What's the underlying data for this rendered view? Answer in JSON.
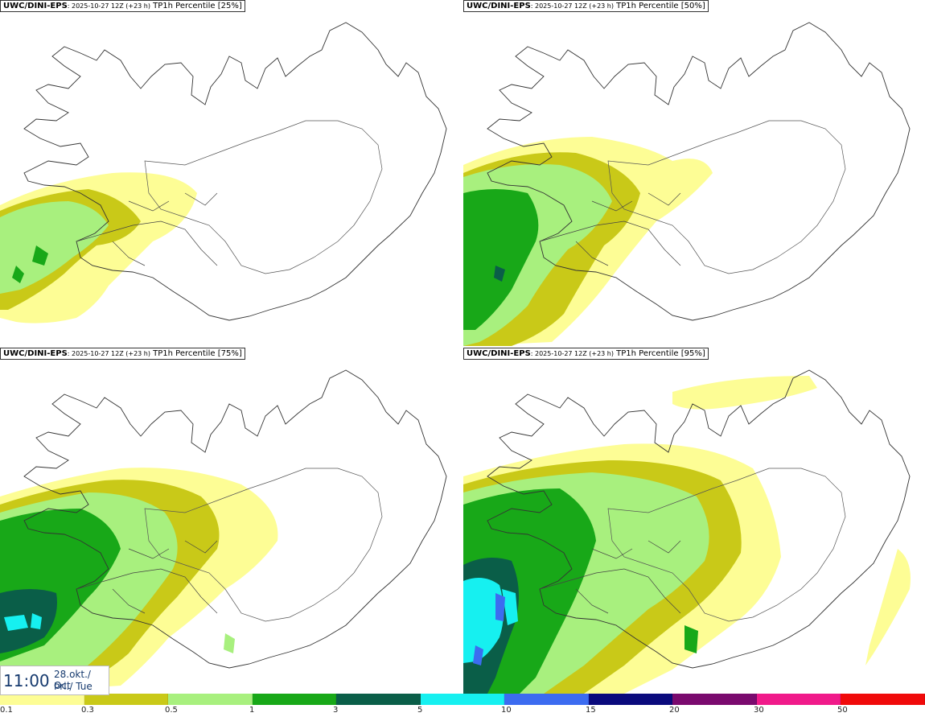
{
  "panels": [
    {
      "model": "UWC/DINI-EPS",
      "run": ": 2025-10-27 12Z (+23 h)",
      "desc": " TP1h Percentile [25%]"
    },
    {
      "model": "UWC/DINI-EPS",
      "run": ": 2025-10-27 12Z (+23 h)",
      "desc": " TP1h Percentile [50%]"
    },
    {
      "model": "UWC/DINI-EPS",
      "run": ": 2025-10-27 12Z (+23 h)",
      "desc": " TP1h Percentile [75%]"
    },
    {
      "model": "UWC/DINI-EPS",
      "run": ": 2025-10-27 12Z (+23 h)",
      "desc": " TP1h Percentile [95%]"
    }
  ],
  "valid_time": {
    "time": "11:00",
    "date_line1": "28.okt./ Oct",
    "date_line2": "Þri./ Tue"
  },
  "legend": {
    "colors": [
      "#fdfd95",
      "#c9c918",
      "#a8f07e",
      "#18a818",
      "#0a5e48",
      "#16f0f0",
      "#3c6cf0",
      "#0a0a7c",
      "#7a0a6e",
      "#f01a8a",
      "#f00a0a"
    ],
    "labels": [
      "0.1",
      "0.3",
      "0.5",
      "1",
      "3",
      "5",
      "10",
      "15",
      "20",
      "30",
      "50"
    ]
  }
}
